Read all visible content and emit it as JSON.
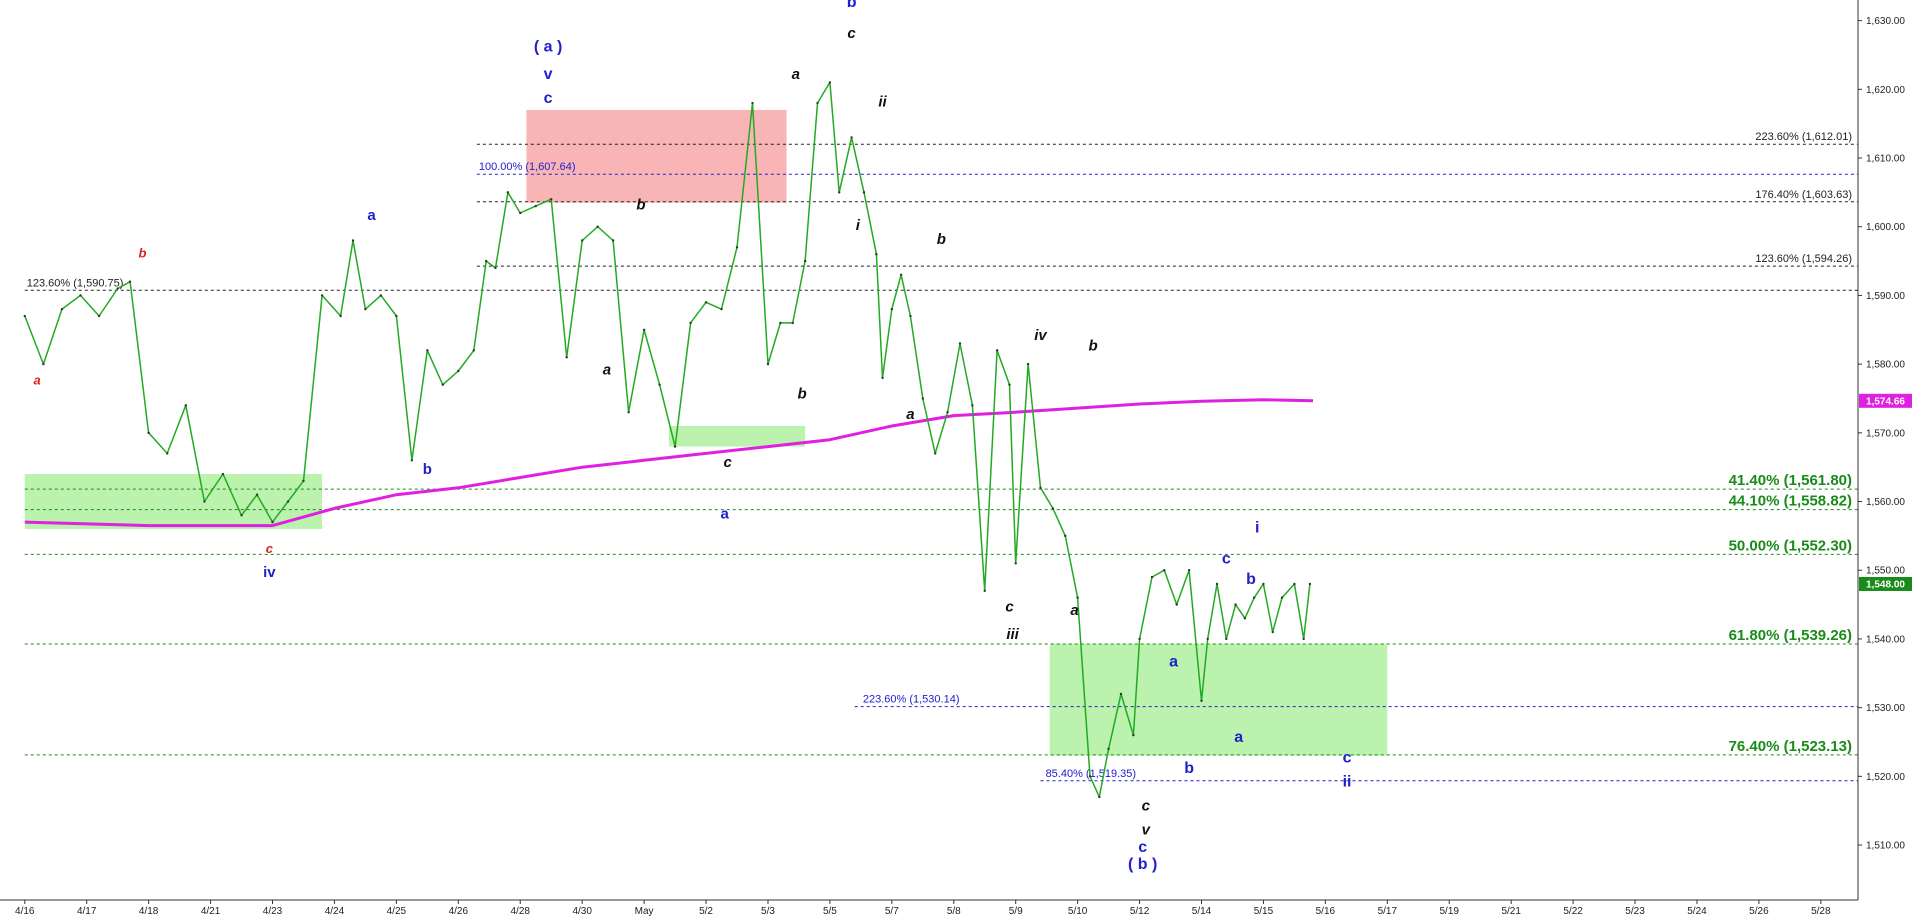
{
  "chart_data": {
    "type": "line",
    "title": "",
    "xlabel": "",
    "ylabel": "",
    "ylim": [
      1502,
      1633
    ],
    "grid": false,
    "x_tick_labels": [
      "4/16",
      "4/17",
      "4/18",
      "4/21",
      "4/23",
      "4/24",
      "4/25",
      "4/26",
      "4/28",
      "4/30",
      "May",
      "5/2",
      "5/3",
      "5/5",
      "5/7",
      "5/8",
      "5/9",
      "5/10",
      "5/12",
      "5/14",
      "5/15",
      "5/16",
      "5/17",
      "5/19",
      "5/21",
      "5/22",
      "5/23",
      "5/24",
      "5/26",
      "5/28"
    ],
    "y_ticks": [
      1510,
      1520,
      1530,
      1540,
      1550,
      1560,
      1570,
      1580,
      1590,
      1600,
      1610,
      1620,
      1630
    ],
    "y_tick_labels": [
      "1,510.00",
      "1,520.00",
      "1,530.00",
      "1,540.00",
      "1,550.00",
      "1,560.00",
      "1,570.00",
      "1,580.00",
      "1,590.00",
      "1,600.00",
      "1,610.00",
      "1,620.00",
      "1,630.00"
    ],
    "price_series": {
      "color": "#22aa22",
      "x": [
        0,
        0.3,
        0.6,
        0.9,
        1.2,
        1.5,
        1.7,
        2.0,
        2.3,
        2.6,
        2.9,
        3.2,
        3.5,
        3.75,
        4.0,
        4.25,
        4.5,
        4.8,
        5.1,
        5.3,
        5.5,
        5.75,
        6.0,
        6.25,
        6.5,
        6.75,
        7.0,
        7.25,
        7.45,
        7.6,
        7.8,
        8.0,
        8.25,
        8.5,
        8.75,
        9.0,
        9.25,
        9.5,
        9.75,
        10.0,
        10.25,
        10.5,
        10.75,
        11.0,
        11.25,
        11.5,
        11.75,
        12.0,
        12.2,
        12.4,
        12.6,
        12.8,
        13.0,
        13.15,
        13.35,
        13.55,
        13.75,
        13.85,
        14.0,
        14.15,
        14.3,
        14.5,
        14.7,
        14.9,
        15.1,
        15.3,
        15.5,
        15.7,
        15.9,
        16.0,
        16.2,
        16.4,
        16.6,
        16.8,
        17.0,
        17.2,
        17.35,
        17.5,
        17.7,
        17.9,
        18.0,
        18.2,
        18.4,
        18.6,
        18.8,
        19.0,
        19.1,
        19.25,
        19.4,
        19.55,
        19.7,
        19.85,
        20.0,
        20.15,
        20.3,
        20.5,
        20.65,
        20.75
      ],
      "y": [
        1587,
        1580,
        1588,
        1590,
        1587,
        1591,
        1592,
        1570,
        1567,
        1574,
        1560,
        1564,
        1558,
        1561,
        1557,
        1560,
        1563,
        1590,
        1587,
        1598,
        1588,
        1590,
        1587,
        1566,
        1582,
        1577,
        1579,
        1582,
        1595,
        1594,
        1605,
        1602,
        1603,
        1604,
        1581,
        1598,
        1600,
        1598,
        1573,
        1585,
        1577,
        1568,
        1586,
        1589,
        1588,
        1597,
        1618,
        1580,
        1586,
        1586,
        1595,
        1618,
        1621,
        1605,
        1613,
        1605,
        1596,
        1578,
        1588,
        1593,
        1587,
        1575,
        1567,
        1573,
        1583,
        1574,
        1547,
        1582,
        1577,
        1551,
        1580,
        1562,
        1559,
        1555,
        1546,
        1520,
        1517,
        1524,
        1532,
        1526,
        1540,
        1549,
        1550,
        1545,
        1550,
        1531,
        1540,
        1548,
        1540,
        1545,
        1543,
        1546,
        1548,
        1541,
        1546,
        1548,
        1540,
        1548
      ]
    },
    "moving_average": {
      "name": "",
      "color": "#e020e0",
      "last_value_label": "1,574.66",
      "x": [
        0,
        2,
        4,
        5,
        6,
        7,
        8,
        9,
        10,
        11,
        12,
        13,
        14,
        15,
        16,
        17,
        18,
        19,
        20,
        20.8
      ],
      "y": [
        1557,
        1556.5,
        1556.5,
        1559,
        1561,
        1562,
        1563.5,
        1565,
        1566,
        1567,
        1568,
        1569,
        1571,
        1572.5,
        1573,
        1573.6,
        1574.2,
        1574.6,
        1574.8,
        1574.66
      ]
    },
    "last_price_label": "1,548.00",
    "shaded_zones": [
      {
        "x0": 0,
        "x1": 4.8,
        "y0": 1556,
        "y1": 1564,
        "color": "#aef0a0"
      },
      {
        "x0": 8.1,
        "x1": 12.3,
        "y0": 1603.5,
        "y1": 1617,
        "color": "#f8a8a8"
      },
      {
        "x0": 10.4,
        "x1": 12.6,
        "y0": 1568,
        "y1": 1571,
        "color": "#aef0a0"
      },
      {
        "x0": 16.55,
        "x1": 22.0,
        "y0": 1523,
        "y1": 1539.3,
        "color": "#aef0a0"
      }
    ],
    "levels": [
      {
        "label": "223.60% (1,612.01)",
        "value": 1612.01,
        "x0": 7.3,
        "color": "#222222",
        "dash": true,
        "label_pos": "right",
        "size": "small"
      },
      {
        "label": "100.00% (1,607.64)",
        "value": 1607.64,
        "x0": 7.3,
        "color": "#2020cc",
        "dash": true,
        "label_pos": "inline",
        "label_x": 7.3,
        "size": "small"
      },
      {
        "label": "176.40% (1,603.63)",
        "value": 1603.63,
        "x0": 7.3,
        "color": "#222222",
        "dash": true,
        "label_pos": "right",
        "size": "small"
      },
      {
        "label": "123.60% (1,594.26)",
        "value": 1594.26,
        "x0": 7.3,
        "color": "#222222",
        "dash": true,
        "label_pos": "right",
        "size": "small"
      },
      {
        "label": "123.60% (1,590.75)",
        "value": 1590.75,
        "x0": 0,
        "color": "#222222",
        "dash": true,
        "label_pos": "inline",
        "label_x": 0,
        "size": "small"
      },
      {
        "label": "41.40% (1,561.80)",
        "value": 1561.8,
        "x0": 0,
        "color": "#1a8a1a",
        "dash": true,
        "label_pos": "right",
        "size": "large"
      },
      {
        "label": "44.10% (1,558.82)",
        "value": 1558.82,
        "x0": 0,
        "color": "#1a8a1a",
        "dash": true,
        "label_pos": "right",
        "size": "large"
      },
      {
        "label": "50.00% (1,552.30)",
        "value": 1552.3,
        "x0": 0,
        "color": "#1a8a1a",
        "dash": true,
        "label_pos": "right",
        "size": "large"
      },
      {
        "label": "61.80% (1,539.26)",
        "value": 1539.26,
        "x0": 0,
        "color": "#1a8a1a",
        "dash": true,
        "label_pos": "right",
        "size": "large"
      },
      {
        "label": "223.60% (1,530.14)",
        "value": 1530.14,
        "x0": 13.4,
        "color": "#2020cc",
        "dash": true,
        "label_pos": "inline",
        "label_x": 13.5,
        "size": "small"
      },
      {
        "label": "76.40% (1,523.13)",
        "value": 1523.13,
        "x0": 0,
        "color": "#1a8a1a",
        "dash": true,
        "label_pos": "right",
        "size": "large"
      },
      {
        "label": "85.40% (1,519.35)",
        "value": 1519.35,
        "x0": 16.4,
        "color": "#2020cc",
        "dash": true,
        "label_pos": "inline",
        "label_x": 16.45,
        "size": "small"
      }
    ],
    "annotations": [
      {
        "text": "a",
        "x": 0.2,
        "y": 1577,
        "color": "#dd2222",
        "italic": true,
        "size": 13
      },
      {
        "text": "b",
        "x": 1.9,
        "y": 1595.5,
        "color": "#dd2222",
        "italic": true,
        "size": 13
      },
      {
        "text": "c",
        "x": 3.95,
        "y": 1552.5,
        "color": "#dd2222",
        "italic": true,
        "size": 13
      },
      {
        "text": "iv",
        "x": 3.95,
        "y": 1549,
        "color": "#2020cc",
        "italic": false,
        "size": 15
      },
      {
        "text": "a",
        "x": 5.6,
        "y": 1601,
        "color": "#2020cc",
        "italic": false,
        "size": 15
      },
      {
        "text": "b",
        "x": 6.5,
        "y": 1564,
        "color": "#2020cc",
        "italic": false,
        "size": 15
      },
      {
        "text": "( a )",
        "x": 8.45,
        "y": 1625.5,
        "color": "#2020cc",
        "italic": false,
        "size": 16
      },
      {
        "text": "v",
        "x": 8.45,
        "y": 1621.5,
        "color": "#2020cc",
        "italic": false,
        "size": 16
      },
      {
        "text": "c",
        "x": 8.45,
        "y": 1618,
        "color": "#2020cc",
        "italic": false,
        "size": 16
      },
      {
        "text": "b",
        "x": 9.95,
        "y": 1602.5,
        "color": "#111111",
        "italic": true,
        "size": 15
      },
      {
        "text": "a",
        "x": 9.4,
        "y": 1578.5,
        "color": "#111111",
        "italic": true,
        "size": 15
      },
      {
        "text": "c",
        "x": 11.35,
        "y": 1565,
        "color": "#111111",
        "italic": true,
        "size": 15
      },
      {
        "text": "a",
        "x": 11.3,
        "y": 1557.5,
        "color": "#2020cc",
        "italic": false,
        "size": 15
      },
      {
        "text": "a",
        "x": 12.45,
        "y": 1621.5,
        "color": "#111111",
        "italic": true,
        "size": 15
      },
      {
        "text": "b",
        "x": 12.55,
        "y": 1575,
        "color": "#111111",
        "italic": true,
        "size": 15
      },
      {
        "text": "b",
        "x": 13.35,
        "y": 1632,
        "color": "#2020cc",
        "italic": false,
        "size": 16
      },
      {
        "text": "c",
        "x": 13.35,
        "y": 1627.5,
        "color": "#111111",
        "italic": true,
        "size": 15
      },
      {
        "text": "i",
        "x": 13.45,
        "y": 1599.5,
        "color": "#111111",
        "italic": true,
        "size": 15
      },
      {
        "text": "ii",
        "x": 13.85,
        "y": 1617.5,
        "color": "#111111",
        "italic": true,
        "size": 15
      },
      {
        "text": "b",
        "x": 14.8,
        "y": 1597.5,
        "color": "#111111",
        "italic": true,
        "size": 15
      },
      {
        "text": "a",
        "x": 14.3,
        "y": 1572,
        "color": "#111111",
        "italic": true,
        "size": 15
      },
      {
        "text": "iv",
        "x": 16.4,
        "y": 1583.5,
        "color": "#111111",
        "italic": true,
        "size": 15
      },
      {
        "text": "b",
        "x": 17.25,
        "y": 1582,
        "color": "#111111",
        "italic": true,
        "size": 15
      },
      {
        "text": "c",
        "x": 15.9,
        "y": 1544,
        "color": "#111111",
        "italic": true,
        "size": 15
      },
      {
        "text": "iii",
        "x": 15.95,
        "y": 1540,
        "color": "#111111",
        "italic": true,
        "size": 15
      },
      {
        "text": "a",
        "x": 16.95,
        "y": 1543.5,
        "color": "#111111",
        "italic": true,
        "size": 15
      },
      {
        "text": "c",
        "x": 18.1,
        "y": 1515,
        "color": "#111111",
        "italic": true,
        "size": 15
      },
      {
        "text": "v",
        "x": 18.1,
        "y": 1511.5,
        "color": "#111111",
        "italic": true,
        "size": 15
      },
      {
        "text": "c",
        "x": 18.05,
        "y": 1509,
        "color": "#2020cc",
        "italic": false,
        "size": 16
      },
      {
        "text": "( b )",
        "x": 18.05,
        "y": 1506.5,
        "color": "#2020cc",
        "italic": false,
        "size": 16
      },
      {
        "text": "a",
        "x": 18.55,
        "y": 1536,
        "color": "#2020cc",
        "italic": false,
        "size": 16
      },
      {
        "text": "b",
        "x": 18.8,
        "y": 1520.5,
        "color": "#2020cc",
        "italic": false,
        "size": 16
      },
      {
        "text": "i",
        "x": 19.9,
        "y": 1555.5,
        "color": "#2020cc",
        "italic": false,
        "size": 16
      },
      {
        "text": "c",
        "x": 19.4,
        "y": 1551,
        "color": "#2020cc",
        "italic": false,
        "size": 16
      },
      {
        "text": "b",
        "x": 19.8,
        "y": 1548,
        "color": "#2020cc",
        "italic": false,
        "size": 16
      },
      {
        "text": "a",
        "x": 19.6,
        "y": 1525,
        "color": "#2020cc",
        "italic": false,
        "size": 16
      },
      {
        "text": "c",
        "x": 21.35,
        "y": 1522,
        "color": "#2020cc",
        "italic": false,
        "size": 16
      },
      {
        "text": "ii",
        "x": 21.35,
        "y": 1518.5,
        "color": "#2020cc",
        "italic": false,
        "size": 16
      }
    ]
  }
}
